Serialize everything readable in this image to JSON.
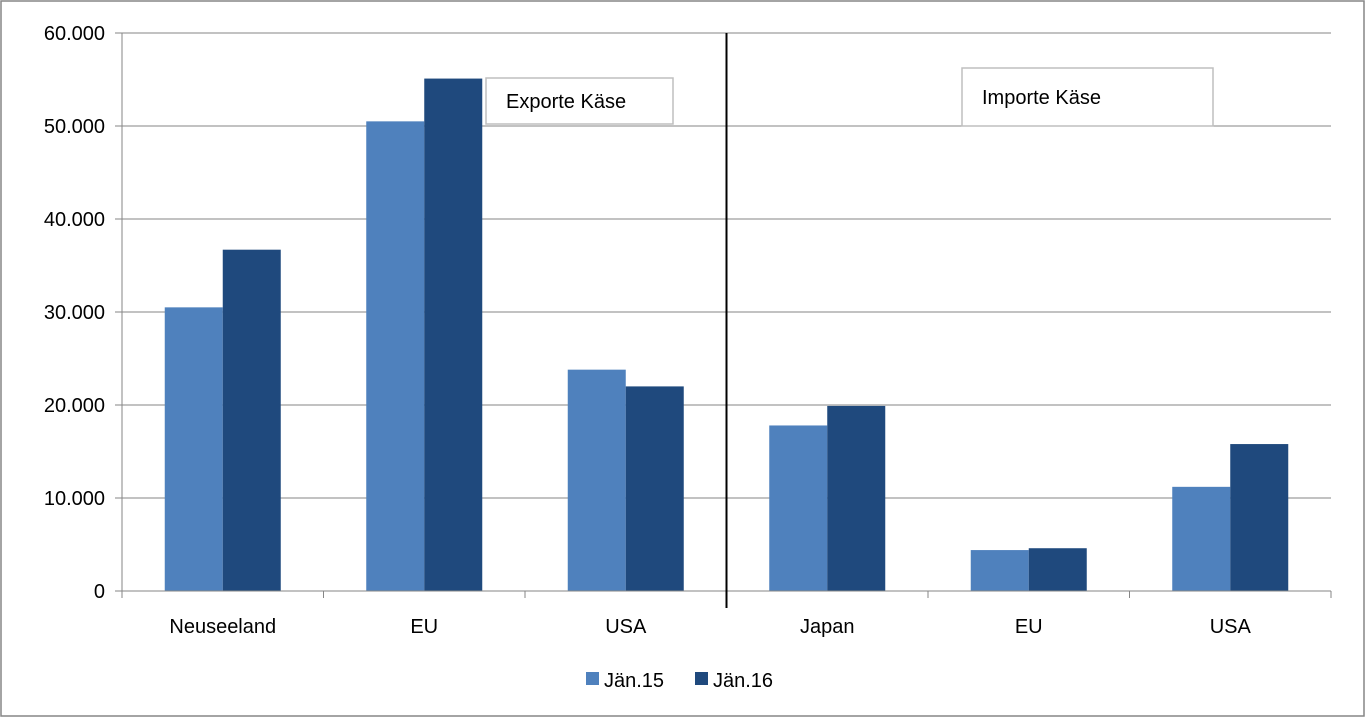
{
  "chart_data": {
    "type": "bar",
    "categories": [
      "Neuseeland",
      "EU",
      "USA",
      "Japan",
      "EU",
      "USA"
    ],
    "series": [
      {
        "name": "Jän.15",
        "values": [
          30500,
          50500,
          23800,
          17800,
          4400,
          11200
        ],
        "color": "#4F81BD"
      },
      {
        "name": "Jän.16",
        "values": [
          36700,
          55100,
          22000,
          19900,
          4600,
          15800
        ],
        "color": "#1F497D"
      }
    ],
    "ylim": [
      0,
      60000
    ],
    "yticks": [
      0,
      10000,
      20000,
      30000,
      40000,
      50000,
      60000
    ],
    "ytick_labels": [
      "0",
      "10.000",
      "20.000",
      "30.000",
      "40.000",
      "50.000",
      "60.000"
    ],
    "grid": true,
    "legend_placement": "bottom",
    "annotations": [
      "Exporte Käse",
      "Importe Käse"
    ],
    "divider_after_category": 3,
    "colors": {
      "grid": "#868686",
      "axis": "#868686",
      "divider": "#000000",
      "text": "#000000",
      "frame": "#868686"
    }
  }
}
